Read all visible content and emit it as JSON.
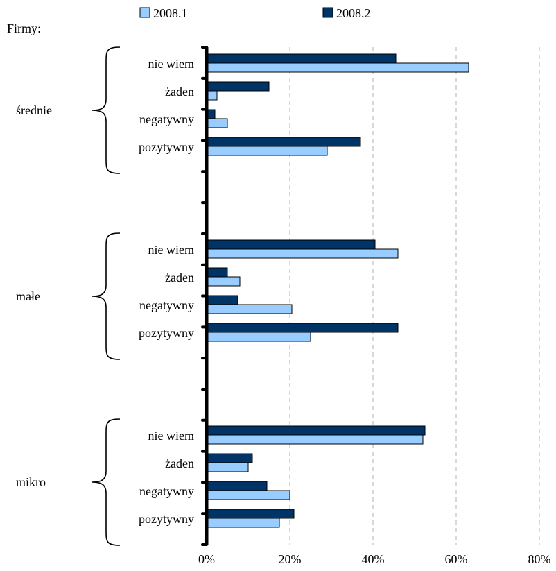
{
  "chart_data": {
    "type": "bar",
    "orientation": "horizontal",
    "group_title": "Firmy:",
    "categories": [
      "nie wiem",
      "żaden",
      "negatywny",
      "pozytywny"
    ],
    "groups": [
      {
        "name": "średnie",
        "series": [
          {
            "name": "2008.1",
            "values": [
              63,
              2.5,
              5,
              29
            ]
          },
          {
            "name": "2008.2",
            "values": [
              45.5,
              15,
              2,
              37
            ]
          }
        ]
      },
      {
        "name": "małe",
        "series": [
          {
            "name": "2008.1",
            "values": [
              46,
              8,
              20.5,
              25
            ]
          },
          {
            "name": "2008.2",
            "values": [
              40.5,
              5,
              7.5,
              46
            ]
          }
        ]
      },
      {
        "name": "mikro",
        "series": [
          {
            "name": "2008.1",
            "values": [
              52,
              10,
              20,
              17.5
            ]
          },
          {
            "name": "2008.2",
            "values": [
              52.5,
              11,
              14.5,
              21
            ]
          }
        ]
      }
    ],
    "legend": [
      {
        "name": "2008.1",
        "color": "#99ccff"
      },
      {
        "name": "2008.2",
        "color": "#003366"
      }
    ],
    "legend_position": "top",
    "xlim": [
      0,
      80
    ],
    "x_ticks": [
      0,
      20,
      40,
      60,
      80
    ],
    "x_tick_labels": [
      "0%",
      "20%",
      "40%",
      "60%",
      "80%"
    ],
    "grid": "vertical-dashed"
  }
}
